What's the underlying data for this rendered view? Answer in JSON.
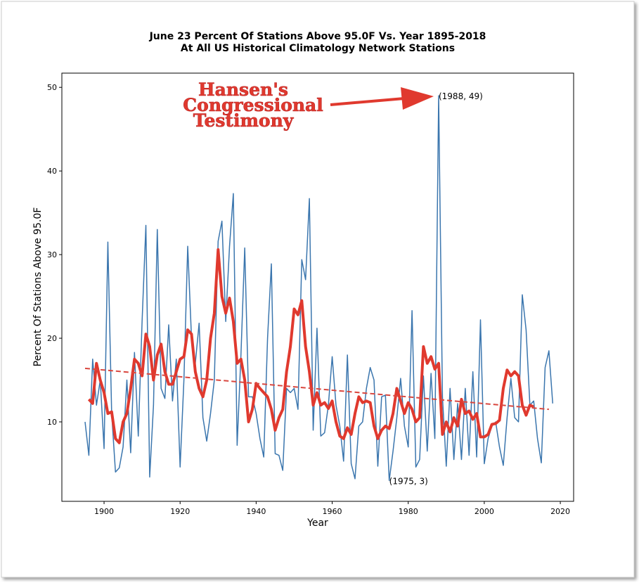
{
  "chart_data": {
    "type": "line",
    "title": [
      "June 23 Percent Of Stations Above 95.0F Vs. Year 1895-2018",
      "At All US Historical Climatology Network Stations"
    ],
    "xlabel": "Year",
    "ylabel": "Percent Of Stations Above 95.0F",
    "x": [
      1895,
      1896,
      1897,
      1898,
      1899,
      1900,
      1901,
      1902,
      1903,
      1904,
      1905,
      1906,
      1907,
      1908,
      1909,
      1910,
      1911,
      1912,
      1913,
      1914,
      1915,
      1916,
      1917,
      1918,
      1919,
      1920,
      1921,
      1922,
      1923,
      1924,
      1925,
      1926,
      1927,
      1928,
      1929,
      1930,
      1931,
      1932,
      1933,
      1934,
      1935,
      1936,
      1937,
      1938,
      1939,
      1940,
      1941,
      1942,
      1943,
      1944,
      1945,
      1946,
      1947,
      1948,
      1949,
      1950,
      1951,
      1952,
      1953,
      1954,
      1955,
      1956,
      1957,
      1958,
      1959,
      1960,
      1961,
      1962,
      1963,
      1964,
      1965,
      1966,
      1967,
      1968,
      1969,
      1970,
      1971,
      1972,
      1973,
      1974,
      1975,
      1976,
      1977,
      1978,
      1979,
      1980,
      1981,
      1982,
      1983,
      1984,
      1985,
      1986,
      1987,
      1988,
      1989,
      1990,
      1991,
      1992,
      1993,
      1994,
      1995,
      1996,
      1997,
      1998,
      1999,
      2000,
      2001,
      2002,
      2003,
      2004,
      2005,
      2006,
      2007,
      2008,
      2009,
      2010,
      2011,
      2012,
      2013,
      2014,
      2015,
      2016,
      2017,
      2018
    ],
    "series": [
      {
        "color": "#3b76ae",
        "width": 1.5,
        "values": [
          10,
          6,
          17.5,
          12,
          15,
          6.8,
          31.5,
          11,
          4,
          4.5,
          7,
          15,
          6.3,
          18.3,
          8.3,
          22,
          33.5,
          3.4,
          12,
          33,
          14,
          12.8,
          21.6,
          12.5,
          17.5,
          4.6,
          15,
          31,
          20,
          17,
          21.8,
          10.5,
          7.7,
          11,
          15,
          31.6,
          34,
          22,
          31,
          37.3,
          7.2,
          18,
          30.8,
          13,
          13,
          11,
          8,
          5.8,
          20,
          28.9,
          6.2,
          6,
          4.2,
          14,
          13.5,
          14,
          11.5,
          29.4,
          27,
          36.7,
          9,
          21.2,
          8.3,
          8.7,
          12,
          17.8,
          12,
          9.5,
          5.3,
          18,
          5,
          3.2,
          9.5,
          10,
          14,
          16.5,
          15,
          4.7,
          13,
          13.2,
          3,
          6.5,
          10.5,
          15.2,
          9.5,
          7,
          23.3,
          4.6,
          5.5,
          15.5,
          6.5,
          15.8,
          8,
          49,
          13,
          4.7,
          14,
          5.5,
          12.2,
          5.5,
          14,
          6,
          16,
          5.8,
          22.2,
          5,
          8,
          9.5,
          10,
          7,
          4.8,
          10.5,
          15.2,
          10.5,
          10,
          25.2,
          21,
          12,
          12.5,
          8,
          5.1,
          16.5,
          18.5,
          12.2
        ]
      },
      {
        "color": "#e0392e",
        "width": 4,
        "values": [
          null,
          12.7,
          12.2,
          17,
          15,
          13.5,
          11,
          11.2,
          8,
          7.5,
          10,
          11,
          14,
          17.5,
          17,
          15.5,
          20.5,
          19,
          15,
          18,
          19.3,
          16,
          14.5,
          14.5,
          16,
          17.5,
          17.8,
          21,
          20.5,
          16,
          14,
          13,
          15,
          20,
          23,
          30.6,
          25,
          23,
          24.8,
          22,
          17,
          17.5,
          15,
          10,
          11.5,
          14.6,
          14,
          13.5,
          13,
          11.5,
          9,
          10.5,
          11.5,
          16,
          19,
          23.5,
          22.8,
          24.5,
          19,
          16,
          12,
          13.5,
          12,
          12.3,
          11.6,
          12.5,
          10,
          8.3,
          8,
          9.3,
          8.5,
          11,
          13,
          12.3,
          12.5,
          12.3,
          9.5,
          8,
          9,
          9.5,
          9.2,
          11,
          14,
          12.5,
          11,
          12.3,
          11.5,
          10,
          10.5,
          19,
          17,
          17.8,
          16.3,
          17,
          8.5,
          10,
          8.8,
          10.5,
          9.5,
          12.7,
          11,
          11.3,
          10.3,
          11,
          8.2,
          8.2,
          8.5,
          9.7,
          9.8,
          10.2,
          14,
          16.2,
          15.5,
          16,
          15.5,
          12,
          10.8,
          12,
          11.8,
          null,
          null,
          null,
          null,
          null
        ]
      }
    ],
    "trend": {
      "color": "#d9473f",
      "x": [
        1895,
        2017
      ],
      "values": [
        16.4,
        11.5
      ]
    },
    "annotations": [
      {
        "text": "(1988, 49)",
        "x": 1988,
        "y": 49
      },
      {
        "text": "(1975, 3)",
        "x": 1975,
        "y": 3
      }
    ],
    "callout": [
      "Hansen's",
      "Congressional",
      "Testimony"
    ],
    "xlim": [
      1888.9,
      2023.5
    ],
    "ylim": [
      0.5,
      51.7
    ],
    "xticks": [
      1900,
      1920,
      1940,
      1960,
      1980,
      2000,
      2020
    ],
    "yticks": [
      10,
      20,
      30,
      40,
      50
    ]
  }
}
